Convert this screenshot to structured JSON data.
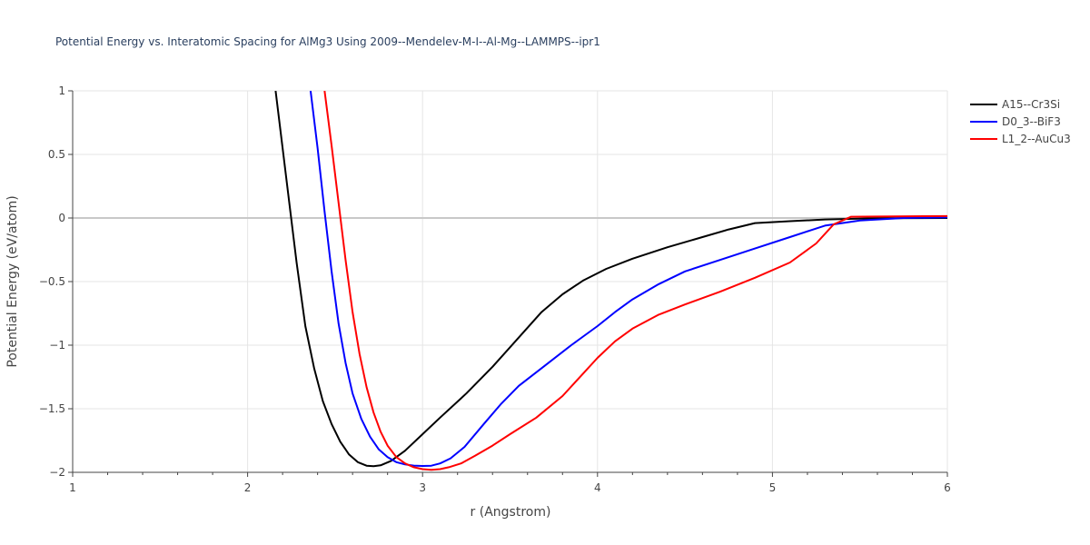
{
  "chart_data": {
    "type": "line",
    "title": "Potential Energy vs. Interatomic Spacing for AlMg3 Using 2009--Mendelev-M-I--Al-Mg--LAMMPS--ipr1",
    "xlabel": "r (Angstrom)",
    "ylabel": "Potential Energy (eV/atom)",
    "xlim": [
      1,
      6
    ],
    "ylim": [
      -2,
      1
    ],
    "x_ticks": [
      1,
      2,
      3,
      4,
      5,
      6
    ],
    "x_tick_labels": [
      "1",
      "2",
      "3",
      "4",
      "5",
      "6"
    ],
    "y_ticks": [
      1,
      0.5,
      0,
      -0.5,
      -1,
      -1.5,
      -2
    ],
    "y_tick_labels": [
      "1",
      "0.5",
      "0",
      "−0.5",
      "−1",
      "−1.5",
      "−2"
    ],
    "grid": true,
    "legend_position": "top-right",
    "series": [
      {
        "name": "A15--Cr3Si",
        "color": "#000000",
        "points": [
          [
            2.16,
            1.0
          ],
          [
            2.2,
            0.55
          ],
          [
            2.24,
            0.1
          ],
          [
            2.28,
            -0.35
          ],
          [
            2.33,
            -0.85
          ],
          [
            2.38,
            -1.18
          ],
          [
            2.43,
            -1.44
          ],
          [
            2.48,
            -1.62
          ],
          [
            2.53,
            -1.76
          ],
          [
            2.58,
            -1.86
          ],
          [
            2.63,
            -1.92
          ],
          [
            2.68,
            -1.948
          ],
          [
            2.72,
            -1.952
          ],
          [
            2.76,
            -1.945
          ],
          [
            2.82,
            -1.91
          ],
          [
            2.9,
            -1.83
          ],
          [
            3.0,
            -1.7
          ],
          [
            3.1,
            -1.57
          ],
          [
            3.25,
            -1.38
          ],
          [
            3.4,
            -1.17
          ],
          [
            3.55,
            -0.94
          ],
          [
            3.68,
            -0.74
          ],
          [
            3.8,
            -0.6
          ],
          [
            3.92,
            -0.49
          ],
          [
            4.05,
            -0.4
          ],
          [
            4.2,
            -0.32
          ],
          [
            4.4,
            -0.23
          ],
          [
            4.6,
            -0.15
          ],
          [
            4.75,
            -0.09
          ],
          [
            4.9,
            -0.04
          ],
          [
            5.1,
            -0.025
          ],
          [
            5.3,
            -0.012
          ],
          [
            5.6,
            -0.002
          ],
          [
            6.0,
            0.0
          ]
        ]
      },
      {
        "name": "D0_3--BiF3",
        "color": "#0000ff",
        "points": [
          [
            2.36,
            1.0
          ],
          [
            2.4,
            0.55
          ],
          [
            2.44,
            0.05
          ],
          [
            2.48,
            -0.42
          ],
          [
            2.52,
            -0.83
          ],
          [
            2.56,
            -1.14
          ],
          [
            2.6,
            -1.38
          ],
          [
            2.65,
            -1.58
          ],
          [
            2.7,
            -1.72
          ],
          [
            2.75,
            -1.82
          ],
          [
            2.8,
            -1.88
          ],
          [
            2.85,
            -1.92
          ],
          [
            2.9,
            -1.938
          ],
          [
            2.95,
            -1.947
          ],
          [
            3.0,
            -1.95
          ],
          [
            3.05,
            -1.948
          ],
          [
            3.1,
            -1.93
          ],
          [
            3.16,
            -1.89
          ],
          [
            3.24,
            -1.8
          ],
          [
            3.35,
            -1.62
          ],
          [
            3.45,
            -1.46
          ],
          [
            3.55,
            -1.32
          ],
          [
            3.7,
            -1.16
          ],
          [
            3.85,
            -1.0
          ],
          [
            4.0,
            -0.85
          ],
          [
            4.1,
            -0.74
          ],
          [
            4.2,
            -0.64
          ],
          [
            4.35,
            -0.52
          ],
          [
            4.5,
            -0.42
          ],
          [
            4.7,
            -0.33
          ],
          [
            4.9,
            -0.24
          ],
          [
            5.1,
            -0.15
          ],
          [
            5.3,
            -0.06
          ],
          [
            5.5,
            -0.02
          ],
          [
            5.75,
            0.0
          ],
          [
            6.0,
            0.005
          ]
        ]
      },
      {
        "name": "L1_2--AuCu3",
        "color": "#ff0000",
        "points": [
          [
            2.44,
            1.0
          ],
          [
            2.48,
            0.57
          ],
          [
            2.52,
            0.12
          ],
          [
            2.56,
            -0.33
          ],
          [
            2.6,
            -0.74
          ],
          [
            2.64,
            -1.07
          ],
          [
            2.68,
            -1.33
          ],
          [
            2.72,
            -1.53
          ],
          [
            2.76,
            -1.68
          ],
          [
            2.8,
            -1.79
          ],
          [
            2.85,
            -1.88
          ],
          [
            2.9,
            -1.93
          ],
          [
            2.95,
            -1.96
          ],
          [
            3.0,
            -1.975
          ],
          [
            3.05,
            -1.98
          ],
          [
            3.1,
            -1.975
          ],
          [
            3.15,
            -1.96
          ],
          [
            3.22,
            -1.93
          ],
          [
            3.3,
            -1.87
          ],
          [
            3.4,
            -1.79
          ],
          [
            3.5,
            -1.7
          ],
          [
            3.65,
            -1.57
          ],
          [
            3.8,
            -1.4
          ],
          [
            3.92,
            -1.22
          ],
          [
            4.0,
            -1.1
          ],
          [
            4.1,
            -0.97
          ],
          [
            4.2,
            -0.87
          ],
          [
            4.35,
            -0.76
          ],
          [
            4.5,
            -0.68
          ],
          [
            4.7,
            -0.58
          ],
          [
            4.9,
            -0.47
          ],
          [
            5.1,
            -0.35
          ],
          [
            5.25,
            -0.2
          ],
          [
            5.35,
            -0.05
          ],
          [
            5.45,
            0.01
          ],
          [
            5.6,
            0.012
          ],
          [
            6.0,
            0.015
          ]
        ]
      }
    ]
  }
}
